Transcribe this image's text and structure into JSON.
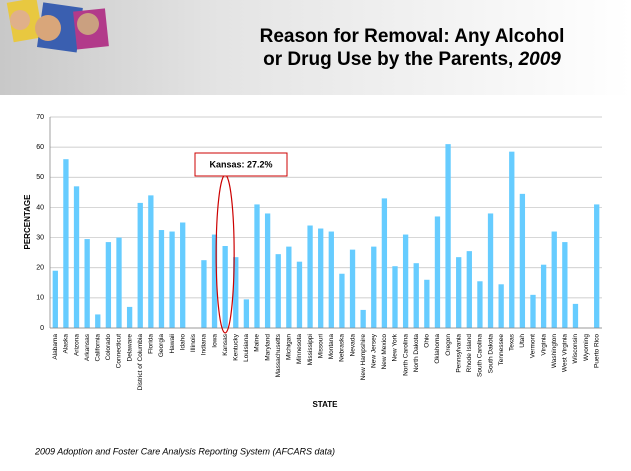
{
  "chart_data": {
    "type": "bar",
    "title_lines": [
      "Reason for Removal: Any Alcohol",
      "or Drug Use by the Parents,"
    ],
    "title_year": "2009",
    "y_label": "PERCENTAGE",
    "x_label": "STATE",
    "annotation": "Kansas: 27.2%",
    "source": "2009 Adoption and Foster Care Analysis Reporting System (AFCARS data)",
    "categories": [
      "Alabama",
      "Alaska",
      "Arizona",
      "Arkansas",
      "California",
      "Colorado",
      "Connecticut",
      "Delaware",
      "District of Columbia",
      "Florida",
      "Georgia",
      "Hawaii",
      "Idaho",
      "Illinois",
      "Indiana",
      "Iowa",
      "Kansas",
      "Kentucky",
      "Louisiana",
      "Maine",
      "Maryland",
      "Massachusetts",
      "Michigan",
      "Minnesota",
      "Mississippi",
      "Missouri",
      "Montana",
      "Nebraska",
      "Nevada",
      "New Hampshire",
      "New Jersey",
      "New Mexico",
      "New York",
      "North Carolina",
      "North Dakota",
      "Ohio",
      "Oklahoma",
      "Oregon",
      "Pennsylvania",
      "Rhode Island",
      "South Carolina",
      "South Dakota",
      "Tennessee",
      "Texas",
      "Utah",
      "Vermont",
      "Virginia",
      "Washington",
      "West Virginia",
      "Wisconsin",
      "Wyoming",
      "Puerto Rico"
    ],
    "values": [
      19,
      56,
      47,
      29.5,
      4.5,
      28.5,
      30,
      7,
      41.5,
      44,
      32.5,
      32,
      35,
      0,
      22.5,
      31,
      27.2,
      23.5,
      9.5,
      41,
      38,
      24.5,
      27,
      22,
      34,
      33,
      32,
      18,
      26,
      6,
      27,
      43,
      20.5,
      31,
      21.5,
      16,
      37,
      61,
      23.5,
      25.5,
      15.5,
      38,
      14.5,
      58.5,
      44.5,
      11,
      21,
      32,
      28.5,
      8,
      0,
      41
    ],
    "color": "#66ccff",
    "ylim": [
      0,
      70
    ],
    "yticks": [
      0,
      10,
      20,
      30,
      40,
      50,
      60,
      70
    ],
    "grid": true
  }
}
